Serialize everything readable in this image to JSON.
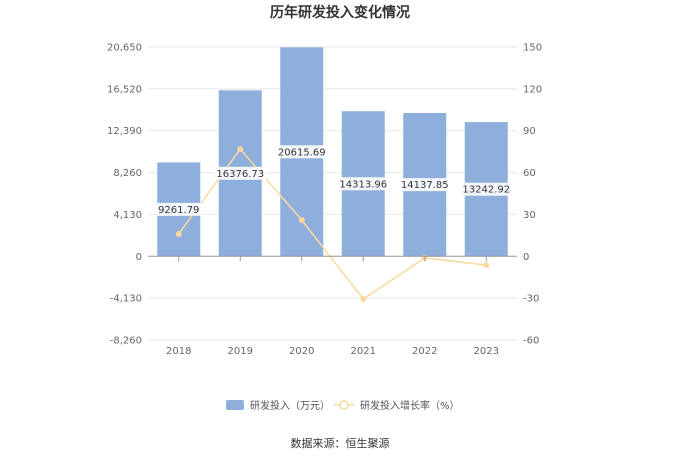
{
  "chart_data": {
    "type": "bar",
    "title": "历年研发投入变化情况",
    "categories": [
      "2018",
      "2019",
      "2020",
      "2021",
      "2022",
      "2023"
    ],
    "series": [
      {
        "name": "研发投入（万元）",
        "type": "bar",
        "axis": "left",
        "color": "#8eaedb",
        "values": [
          9261.79,
          16376.73,
          20615.69,
          14313.96,
          14137.85,
          13242.92
        ],
        "labels": [
          "9261.79",
          "16376.73",
          "20615.69",
          "14313.96",
          "14137.85",
          "13242.92"
        ]
      },
      {
        "name": "研发投入增长率（%）",
        "type": "line",
        "axis": "right",
        "color": "#fcd9a0",
        "values": [
          16.0,
          76.8,
          25.9,
          -30.6,
          -1.2,
          -6.3
        ]
      }
    ],
    "y_left": {
      "ylim": [
        -8260,
        20650
      ],
      "ticks": [
        -8260,
        -4130,
        0,
        4130,
        8260,
        12390,
        16520,
        20650
      ],
      "tick_labels": [
        "-8,260",
        "-4,130",
        "0",
        "4,130",
        "8,260",
        "12,390",
        "16,520",
        "20,650"
      ]
    },
    "y_right": {
      "ylim": [
        -60,
        150
      ],
      "ticks": [
        -60,
        -30,
        0,
        30,
        60,
        90,
        120,
        150
      ],
      "tick_labels": [
        "-60",
        "-30",
        "0",
        "30",
        "60",
        "90",
        "120",
        "150"
      ]
    },
    "grid": true,
    "legend_position": "bottom"
  },
  "source_text": "数据来源：恒生聚源"
}
